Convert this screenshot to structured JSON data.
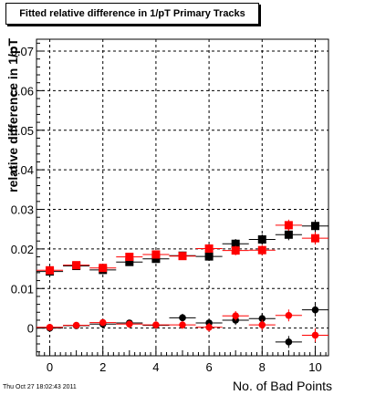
{
  "chart_data": {
    "type": "scatter",
    "title": "Fitted relative difference in 1/pT Primary Tracks",
    "xlabel": "No. of Bad Points",
    "ylabel": "relative difference in 1/pT",
    "xlim": [
      -0.5,
      10.5
    ],
    "ylim": [
      -0.007,
      0.073
    ],
    "x_ticks": [
      0,
      2,
      4,
      6,
      8,
      10
    ],
    "x_tick_labels": [
      "0",
      "2",
      "4",
      "6",
      "8",
      "10"
    ],
    "y_ticks": [
      0,
      0.01,
      0.02,
      0.03,
      0.04,
      0.05,
      0.06,
      0.07
    ],
    "y_tick_labels": [
      "0",
      "0.01",
      "0.02",
      "0.03",
      "0.04",
      "0.05",
      "0.06",
      "0.07"
    ],
    "grid": true,
    "x_err": 0.5,
    "series": [
      {
        "marker": "square",
        "color": "#000000",
        "points": [
          {
            "x": 0,
            "y": 0.0143,
            "err": 0.0008
          },
          {
            "x": 1,
            "y": 0.0157,
            "err": 0.0008
          },
          {
            "x": 2,
            "y": 0.0147,
            "err": 0.0008
          },
          {
            "x": 3,
            "y": 0.0167,
            "err": 0.0009
          },
          {
            "x": 4,
            "y": 0.0175,
            "err": 0.0009
          },
          {
            "x": 5,
            "y": 0.0183,
            "err": 0.001
          },
          {
            "x": 6,
            "y": 0.0181,
            "err": 0.0011
          },
          {
            "x": 7,
            "y": 0.0213,
            "err": 0.0012
          },
          {
            "x": 8,
            "y": 0.0224,
            "err": 0.0013
          },
          {
            "x": 9,
            "y": 0.0236,
            "err": 0.0014
          },
          {
            "x": 10,
            "y": 0.0258,
            "err": 0.0016
          }
        ]
      },
      {
        "marker": "square",
        "color": "#ff0000",
        "points": [
          {
            "x": 0,
            "y": 0.0146,
            "err": 0.0008
          },
          {
            "x": 1,
            "y": 0.0159,
            "err": 0.0008
          },
          {
            "x": 2,
            "y": 0.0152,
            "err": 0.0008
          },
          {
            "x": 3,
            "y": 0.018,
            "err": 0.0009
          },
          {
            "x": 4,
            "y": 0.0186,
            "err": 0.0009
          },
          {
            "x": 5,
            "y": 0.0182,
            "err": 0.001
          },
          {
            "x": 6,
            "y": 0.0201,
            "err": 0.0011
          },
          {
            "x": 7,
            "y": 0.0196,
            "err": 0.0012
          },
          {
            "x": 8,
            "y": 0.0197,
            "err": 0.0013
          },
          {
            "x": 9,
            "y": 0.026,
            "err": 0.0014
          },
          {
            "x": 10,
            "y": 0.0227,
            "err": 0.0016
          }
        ]
      },
      {
        "marker": "circle",
        "color": "#000000",
        "points": [
          {
            "x": 0,
            "y": 0.0,
            "err": 0.0007
          },
          {
            "x": 1,
            "y": 0.0006,
            "err": 0.0007
          },
          {
            "x": 2,
            "y": 0.001,
            "err": 0.0007
          },
          {
            "x": 3,
            "y": 0.0013,
            "err": 0.0008
          },
          {
            "x": 4,
            "y": 0.0007,
            "err": 0.0009
          },
          {
            "x": 5,
            "y": 0.0026,
            "err": 0.001
          },
          {
            "x": 6,
            "y": 0.0013,
            "err": 0.0011
          },
          {
            "x": 7,
            "y": 0.002,
            "err": 0.0012
          },
          {
            "x": 8,
            "y": 0.0024,
            "err": 0.0013
          },
          {
            "x": 9,
            "y": -0.0035,
            "err": 0.0015
          },
          {
            "x": 10,
            "y": 0.0046,
            "err": 0.0017
          }
        ]
      },
      {
        "marker": "circle",
        "color": "#ff0000",
        "points": [
          {
            "x": 0,
            "y": 0.0002,
            "err": 0.0007
          },
          {
            "x": 1,
            "y": 0.0007,
            "err": 0.0007
          },
          {
            "x": 2,
            "y": 0.0014,
            "err": 0.0007
          },
          {
            "x": 3,
            "y": 0.001,
            "err": 0.0008
          },
          {
            "x": 4,
            "y": 0.0008,
            "err": 0.0009
          },
          {
            "x": 5,
            "y": 0.0008,
            "err": 0.001
          },
          {
            "x": 6,
            "y": 0.0002,
            "err": 0.0011
          },
          {
            "x": 7,
            "y": 0.0031,
            "err": 0.0012
          },
          {
            "x": 8,
            "y": 0.0008,
            "err": 0.0013
          },
          {
            "x": 9,
            "y": 0.0032,
            "err": 0.0015
          },
          {
            "x": 10,
            "y": -0.0018,
            "err": 0.0017
          }
        ]
      }
    ]
  },
  "timestamp": "Thu Oct 27 18:02:43 2011"
}
